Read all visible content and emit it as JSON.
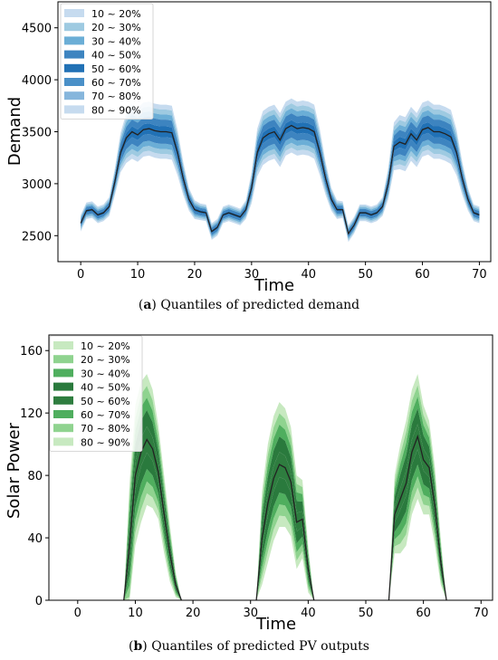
{
  "chart_data": [
    {
      "type": "area",
      "panel_letter": "a",
      "caption": "Quantiles of predicted demand",
      "xlabel": "Time",
      "ylabel": "Demand",
      "xlim": [
        -4,
        72
      ],
      "ylim": [
        2250,
        4750
      ],
      "xticks": [
        0,
        10,
        20,
        30,
        40,
        50,
        60,
        70
      ],
      "yticks": [
        2500,
        3000,
        3500,
        4000,
        4500
      ],
      "legend_position": "upper-left",
      "legend": [
        "10 ~ 20%",
        "20 ~ 30%",
        "30 ~ 40%",
        "40 ~ 50%",
        "50 ~ 60%",
        "60 ~ 70%",
        "70 ~ 80%",
        "80 ~ 90%"
      ],
      "band_colors": [
        "#c6dbef",
        "#9ecae1",
        "#6baed6",
        "#3d84c0",
        "#2171b5",
        "#4a90c8",
        "#86b6dc",
        "#c6dbef"
      ],
      "x": [
        0,
        1,
        2,
        3,
        4,
        5,
        6,
        7,
        8,
        9,
        10,
        11,
        12,
        13,
        14,
        15,
        16,
        17,
        18,
        19,
        20,
        21,
        22,
        23,
        24,
        25,
        26,
        27,
        28,
        29,
        30,
        31,
        32,
        33,
        34,
        35,
        36,
        37,
        38,
        39,
        40,
        41,
        42,
        43,
        44,
        45,
        46,
        47,
        48,
        49,
        50,
        51,
        52,
        53,
        54,
        55,
        56,
        57,
        58,
        59,
        60,
        61,
        62,
        63,
        64,
        65,
        66,
        67,
        68,
        69,
        70
      ],
      "median": [
        2620,
        2740,
        2750,
        2700,
        2720,
        2780,
        3020,
        3300,
        3440,
        3500,
        3470,
        3520,
        3530,
        3510,
        3500,
        3500,
        3490,
        3300,
        3050,
        2850,
        2750,
        2730,
        2720,
        2540,
        2580,
        2700,
        2720,
        2700,
        2680,
        2750,
        2960,
        3300,
        3440,
        3480,
        3500,
        3420,
        3530,
        3560,
        3530,
        3540,
        3530,
        3500,
        3300,
        3050,
        2850,
        2750,
        2750,
        2520,
        2600,
        2720,
        2720,
        2700,
        2720,
        2780,
        3000,
        3360,
        3400,
        3380,
        3480,
        3420,
        3520,
        3540,
        3500,
        3500,
        3480,
        3450,
        3300,
        3050,
        2850,
        2720,
        2700
      ],
      "spread": [
        80,
        80,
        80,
        80,
        80,
        90,
        130,
        190,
        240,
        260,
        260,
        260,
        260,
        260,
        260,
        260,
        260,
        220,
        160,
        110,
        90,
        80,
        80,
        80,
        80,
        80,
        80,
        80,
        80,
        90,
        150,
        230,
        260,
        260,
        260,
        260,
        260,
        260,
        260,
        260,
        260,
        260,
        220,
        160,
        110,
        90,
        80,
        80,
        80,
        80,
        80,
        80,
        80,
        90,
        150,
        230,
        260,
        260,
        260,
        260,
        260,
        260,
        260,
        260,
        260,
        260,
        220,
        160,
        110,
        80,
        80
      ]
    },
    {
      "type": "area",
      "panel_letter": "b",
      "caption": "Quantiles of predicted PV outputs",
      "xlabel": "Time",
      "ylabel": "Solar Power",
      "xlim": [
        -5,
        72
      ],
      "ylim": [
        0,
        170
      ],
      "xticks": [
        0,
        10,
        20,
        30,
        40,
        50,
        60,
        70
      ],
      "yticks": [
        0,
        40,
        80,
        120,
        160
      ],
      "legend_position": "upper-left",
      "legend": [
        "10 ~ 20%",
        "20 ~ 30%",
        "30 ~ 40%",
        "40 ~ 50%",
        "50 ~ 60%",
        "60 ~ 70%",
        "70 ~ 80%",
        "80 ~ 90%"
      ],
      "band_colors": [
        "#c7e9c0",
        "#8fd38f",
        "#4fae5e",
        "#2a7a3d",
        "#2e7d3f",
        "#4fae5e",
        "#8fd38f",
        "#c7e9c0"
      ],
      "segments": [
        {
          "x": [
            8,
            9,
            10,
            11,
            12,
            13,
            14,
            15,
            16,
            17,
            18
          ],
          "median": [
            0,
            35,
            80,
            95,
            103,
            97,
            82,
            55,
            30,
            10,
            0
          ],
          "spread": [
            0,
            40,
            45,
            45,
            42,
            38,
            30,
            25,
            18,
            8,
            0
          ]
        },
        {
          "x": [
            31,
            32,
            33,
            34,
            35,
            36,
            37,
            38,
            39,
            40,
            41
          ],
          "median": [
            0,
            40,
            62,
            78,
            87,
            85,
            76,
            50,
            52,
            20,
            0
          ],
          "spread": [
            0,
            30,
            38,
            40,
            40,
            38,
            35,
            30,
            25,
            15,
            0
          ]
        },
        {
          "x": [
            54,
            55,
            56,
            57,
            58,
            59,
            60,
            61,
            62,
            63,
            64
          ],
          "median": [
            0,
            55,
            65,
            75,
            95,
            105,
            90,
            85,
            60,
            25,
            0
          ],
          "spread": [
            0,
            25,
            35,
            40,
            40,
            40,
            35,
            30,
            25,
            15,
            0
          ]
        }
      ]
    }
  ]
}
